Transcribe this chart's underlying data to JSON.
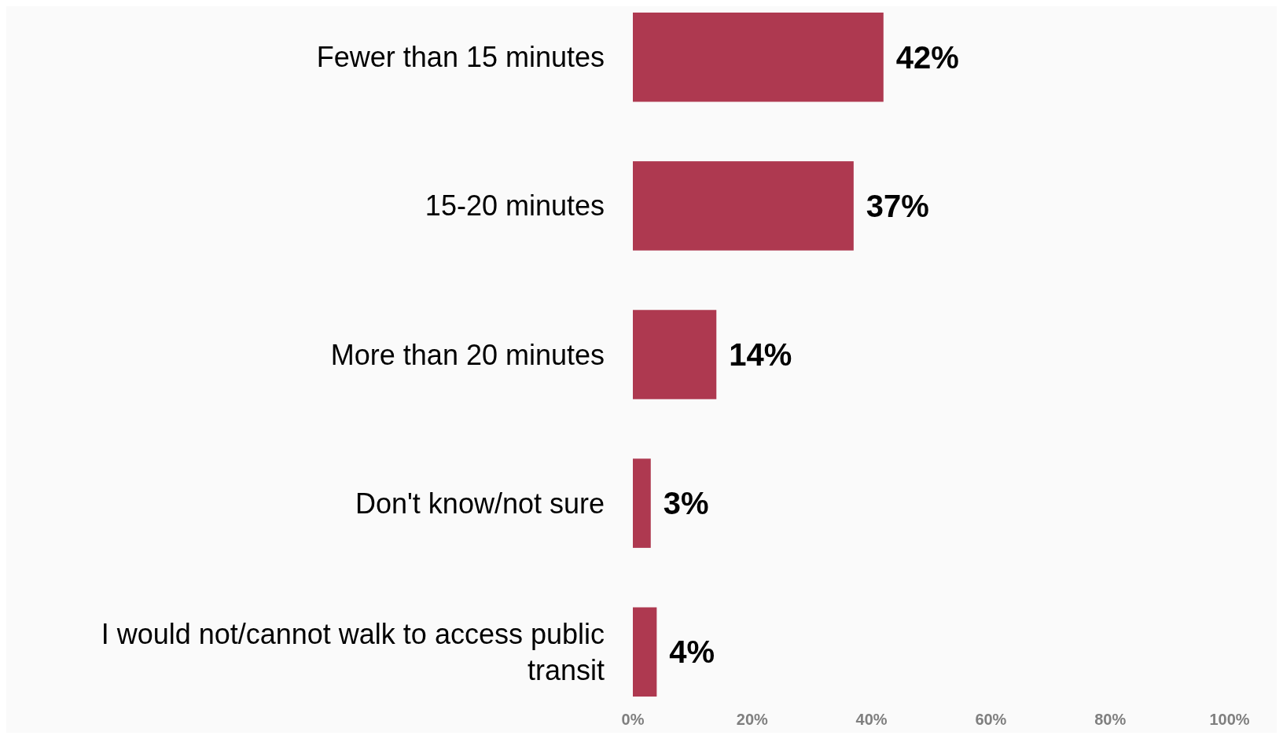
{
  "chart_data": {
    "type": "bar",
    "orientation": "horizontal",
    "categories": [
      "Fewer than 15 minutes",
      "15-20 minutes",
      "More than 20 minutes",
      "Don't know/not sure",
      "I would not/cannot walk to access public transit"
    ],
    "values": [
      42,
      37,
      14,
      3,
      4
    ],
    "value_labels": [
      "42%",
      "37%",
      "14%",
      "3%",
      "4%"
    ],
    "color": "#ae3950",
    "xlim": [
      0,
      100
    ],
    "xticks": [
      {
        "value": 0,
        "label": "0%"
      },
      {
        "value": 20,
        "label": "20%"
      },
      {
        "value": 40,
        "label": "40%"
      },
      {
        "value": 60,
        "label": "60%"
      },
      {
        "value": 80,
        "label": "80%"
      },
      {
        "value": 100,
        "label": "100%"
      }
    ],
    "grid": false
  }
}
